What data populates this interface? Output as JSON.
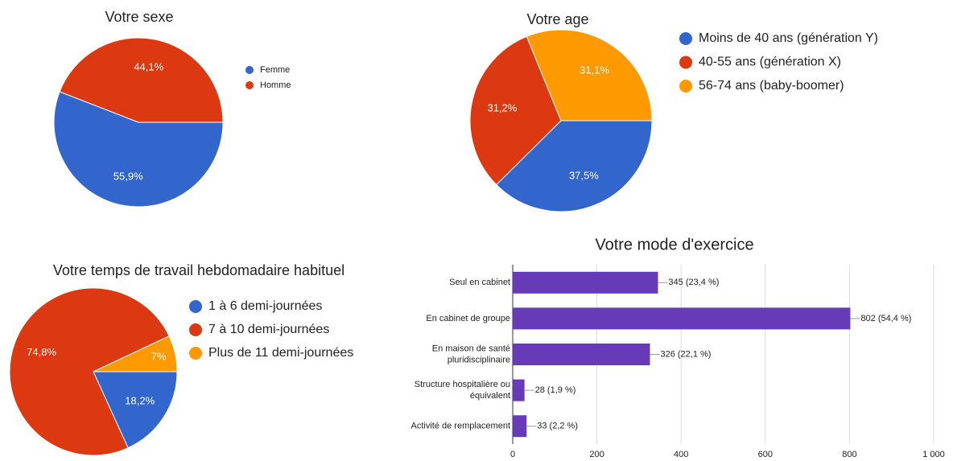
{
  "chart_data": [
    {
      "type": "pie",
      "title": "Votre sexe",
      "categories": [
        "Femme",
        "Homme"
      ],
      "values": [
        55.9,
        44.1
      ],
      "value_labels": [
        "55,9%",
        "44,1%"
      ],
      "colors": [
        "#3366cc",
        "#dc3912"
      ],
      "legend": "right"
    },
    {
      "type": "pie",
      "title": "Votre age",
      "categories": [
        "Moins de 40 ans (génération Y)",
        "40-55 ans (génération X)",
        "56-74 ans (baby-boomer)"
      ],
      "values": [
        37.5,
        31.2,
        31.1
      ],
      "value_labels": [
        "37,5%",
        "31,2%",
        "31,1%"
      ],
      "colors": [
        "#3366cc",
        "#dc3912",
        "#ff9900"
      ],
      "legend": "right"
    },
    {
      "type": "pie",
      "title": "Votre temps de travail hebdomadaire habituel",
      "categories": [
        "1 à 6 demi-journées",
        "7 à 10 demi-journées",
        "Plus de 11 demi-journées"
      ],
      "values": [
        18.2,
        74.8,
        7
      ],
      "value_labels": [
        "18,2%",
        "74,8%",
        "7%"
      ],
      "colors": [
        "#3366cc",
        "#dc3912",
        "#ff9900"
      ],
      "legend": "right"
    },
    {
      "type": "hbar",
      "title": "Votre mode d'exercice",
      "categories": [
        "Seul en cabinet",
        "En cabinet de groupe",
        "En maison de santé\npluridisciplinaire",
        "Structure hospitalière ou\néquivalent",
        "Activité de remplacement"
      ],
      "values": [
        345,
        802,
        326,
        28,
        33
      ],
      "value_labels": [
        "345 (23,4 %)",
        "802 (54,4 %)",
        "326 (22,1 %)",
        "28 (1,9 %)",
        "33 (2,2 %)"
      ],
      "color": "#673ab7",
      "xlim": [
        0,
        1000
      ],
      "xticks": [
        0,
        200,
        400,
        600,
        800,
        {
          "value": 1000,
          "label": "1 000"
        }
      ],
      "grid": true
    }
  ]
}
